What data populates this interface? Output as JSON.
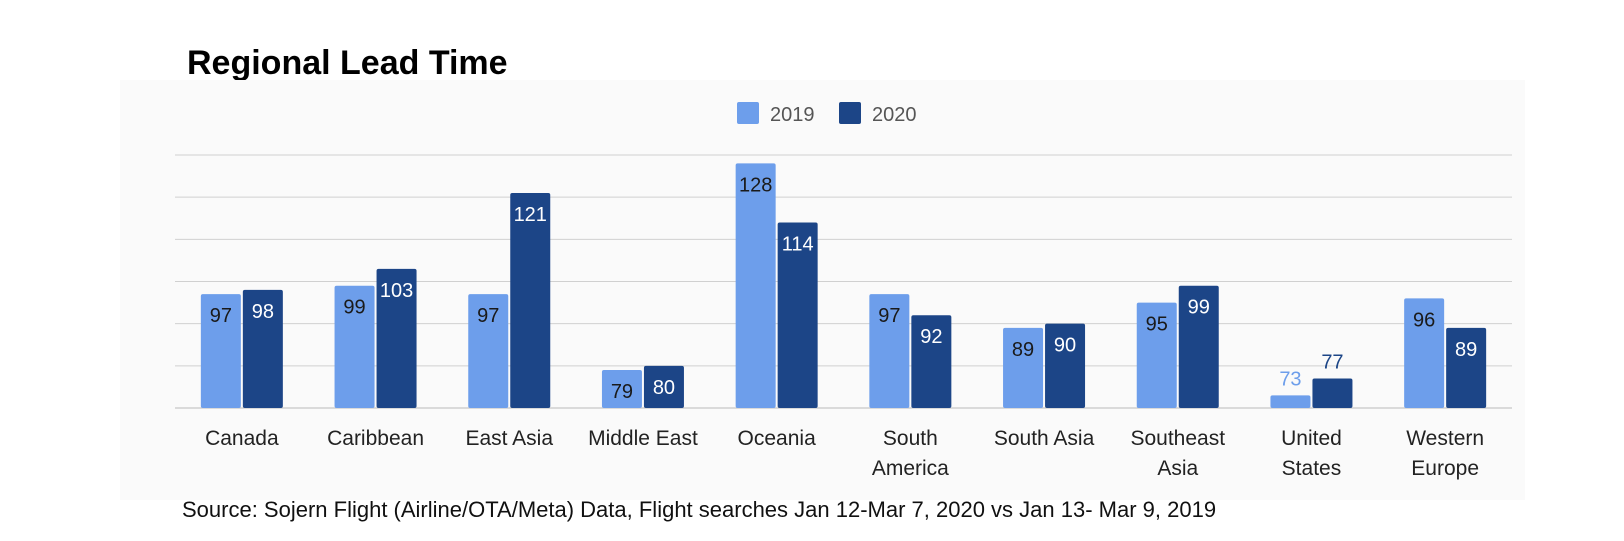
{
  "title": "Regional Lead Time",
  "source": "Source: Sojern Flight (Airline/OTA/Meta) Data, Flight searches Jan 12-Mar 7, 2020 vs Jan 13- Mar 9, 2019",
  "colors": {
    "2019": "#6d9eeb",
    "2020": "#1c4587",
    "grid": "#d0d0d0"
  },
  "chart_data": {
    "type": "bar",
    "title": "Regional Lead Time",
    "xlabel": "",
    "ylabel": "",
    "legend_position": "top",
    "grid": true,
    "categories": [
      [
        "Canada"
      ],
      [
        "Caribbean"
      ],
      [
        "East Asia"
      ],
      [
        "Middle East"
      ],
      [
        "Oceania"
      ],
      [
        "South",
        "America"
      ],
      [
        "South Asia"
      ],
      [
        "Southeast",
        "Asia"
      ],
      [
        "United",
        "States"
      ],
      [
        "Western",
        "Europe"
      ]
    ],
    "series": [
      {
        "name": "2019",
        "values": [
          97,
          99,
          97,
          79,
          128,
          97,
          89,
          95,
          73,
          96
        ]
      },
      {
        "name": "2020",
        "values": [
          98,
          103,
          121,
          80,
          114,
          92,
          90,
          99,
          77,
          89
        ]
      }
    ],
    "ylim": [
      70,
      130
    ]
  }
}
